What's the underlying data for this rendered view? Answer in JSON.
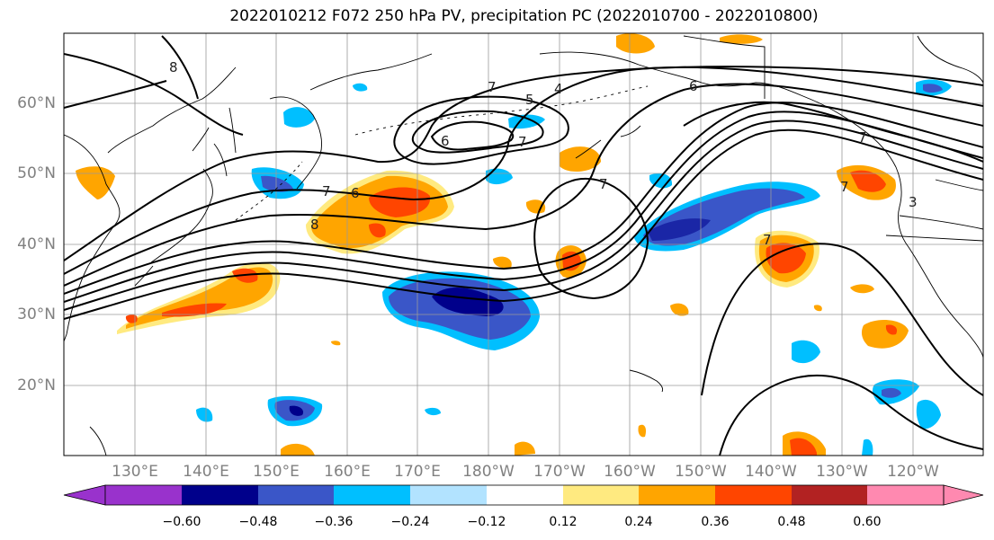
{
  "title": "2022010212 F072 250 hPa PV, precipitation PC (2022010700 - 2022010800)",
  "lat_labels": [
    "60°N",
    "50°N",
    "40°N",
    "30°N",
    "20°N"
  ],
  "lon_labels": [
    "130°E",
    "140°E",
    "150°E",
    "160°E",
    "170°E",
    "180°W",
    "170°W",
    "160°W",
    "150°W",
    "140°W",
    "130°W",
    "120°W"
  ],
  "contour_labels": [
    "8",
    "7",
    "6",
    "5",
    "4",
    "7",
    "6",
    "7",
    "7",
    "7",
    "6",
    "7",
    "8",
    "7",
    "3"
  ],
  "colorbar": {
    "ticks": [
      "−0.60",
      "−0.48",
      "−0.36",
      "−0.24",
      "−0.12",
      "0.12",
      "0.24",
      "0.36",
      "0.48",
      "0.60"
    ],
    "colors": [
      "#9932CC",
      "#00008B",
      "#3A56C8",
      "#00BFFF",
      "#B2E3FF",
      "#FFFFFF",
      "#FFEA80",
      "#FFA500",
      "#FF4500",
      "#B22222",
      "#FF89B0"
    ]
  }
}
